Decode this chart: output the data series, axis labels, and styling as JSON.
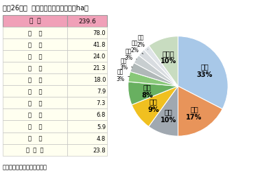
{
  "title": "平成26年産  新興梨の栽培面積（単位ha）",
  "footer": "特産果樹生産動態等調査より",
  "total_label": "総  計",
  "total_value": "239.6",
  "table_rows": [
    [
      "新    潟",
      "78.0"
    ],
    [
      "島    取",
      "41.8"
    ],
    [
      "大    分",
      "24.0"
    ],
    [
      "熊    本",
      "21.3"
    ],
    [
      "京    都",
      "18.0"
    ],
    [
      "埼    玉",
      "7.9"
    ],
    [
      "福    岡",
      "7.3"
    ],
    [
      "宮    崎",
      "6.8"
    ],
    [
      "千    葉",
      "5.9"
    ],
    [
      "島    根",
      "4.8"
    ],
    [
      "そ  の  他",
      "23.8"
    ]
  ],
  "pie_labels": [
    "新潟",
    "鳥取",
    "大分",
    "熊本",
    "京都",
    "埼玉",
    "福岡",
    "宮崎",
    "千葉",
    "島根",
    "その他"
  ],
  "pie_values": [
    78.0,
    41.8,
    24.0,
    21.3,
    18.0,
    7.9,
    7.3,
    6.8,
    5.9,
    4.8,
    23.8
  ],
  "pie_percents": [
    "33%",
    "17%",
    "10%",
    "9%",
    "8%",
    "3%",
    "3%",
    "3%",
    "2%",
    "2%",
    "10%"
  ],
  "pie_colors": [
    "#A8C8E8",
    "#E8945A",
    "#A0A8B0",
    "#F0C020",
    "#68B060",
    "#88C878",
    "#B0B8B8",
    "#C8CED0",
    "#D8DCE0",
    "#E0E4E8",
    "#C8DCC0"
  ],
  "label_inside": [
    true,
    true,
    true,
    true,
    true,
    false,
    false,
    false,
    false,
    false,
    true
  ],
  "table_header_bg": "#F0A0B8",
  "table_row_bg": "#FFFFF0",
  "table_border_color": "#AAAAAA",
  "bg_color": "#FFFFFF",
  "startangle": 90,
  "pie_label_fontsize": 7,
  "pie_pct_fontsize": 7
}
